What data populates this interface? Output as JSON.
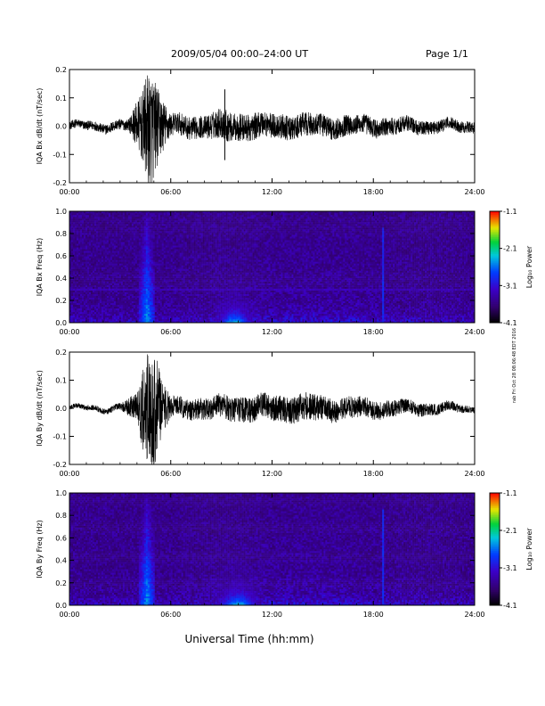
{
  "header": {
    "title": "2009/05/04  00:00–24:00 UT",
    "page": "Page 1/1"
  },
  "footer": {
    "xlabel": "Universal Time (hh:mm)"
  },
  "side_note": "rab Fri Oct 28 08:06:48 EDT 2016",
  "colorbar": {
    "label": "Log₁₀ Power",
    "ticks": [
      "-1.1",
      "-2.1",
      "-3.1",
      "-4.1"
    ],
    "range": [
      -4.1,
      -1.1
    ]
  },
  "chart_data": [
    {
      "type": "line",
      "ylabel": "IQA Bx dB/dt (nT/sec)",
      "x_ticks": [
        "00:00",
        "06:00",
        "12:00",
        "18:00",
        "24:00"
      ],
      "xlim": [
        0,
        24
      ],
      "ylim": [
        -0.2,
        0.2
      ],
      "y_ticks": [
        "0.2",
        "0.1",
        "0.0",
        "-0.1",
        "-0.2"
      ],
      "y_tick_values": [
        0.2,
        0.1,
        0.0,
        -0.1,
        -0.2
      ],
      "envelope": {
        "x_hours": [
          0,
          3.5,
          4.3,
          4.6,
          4.9,
          5.3,
          6,
          8,
          9.2,
          9.6,
          10,
          12,
          15,
          18,
          21,
          24
        ],
        "amplitude": [
          0.015,
          0.02,
          0.12,
          0.2,
          0.2,
          0.12,
          0.04,
          0.04,
          0.06,
          0.05,
          0.05,
          0.045,
          0.04,
          0.035,
          0.025,
          0.02
        ]
      },
      "spikes": [
        {
          "x_hours": 9.2,
          "y": 0.13
        },
        {
          "x_hours": 9.2,
          "y": -0.12
        }
      ]
    },
    {
      "type": "heatmap",
      "ylabel": "IQA Bx Freq (Hz)",
      "x_ticks": [
        "00:00",
        "06:00",
        "12:00",
        "18:00",
        "24:00"
      ],
      "xlim": [
        0,
        24
      ],
      "ylim": [
        0,
        1.0
      ],
      "y_ticks": [
        "1.0",
        "0.8",
        "0.6",
        "0.4",
        "0.2",
        "0.0"
      ],
      "y_tick_values": [
        1.0,
        0.8,
        0.6,
        0.4,
        0.2,
        0.0
      ],
      "color_range": [
        -4.1,
        -1.1
      ],
      "features": [
        {
          "kind": "burst",
          "x_hours": 4.6,
          "width_hours": 0.5,
          "intensity": -2.6
        },
        {
          "kind": "low_freq_band",
          "x_hours": 9.8,
          "width_hours": 1.2,
          "intensity": -2.6
        },
        {
          "kind": "line",
          "x_hours": 18.6,
          "intensity": -3.0
        },
        {
          "kind": "horizontal_line",
          "freq_hz": 0.3,
          "intensity": -3.4
        }
      ]
    },
    {
      "type": "line",
      "ylabel": "IQA By dB/dt (nT/sec)",
      "x_ticks": [
        "00:00",
        "06:00",
        "12:00",
        "18:00",
        "24:00"
      ],
      "xlim": [
        0,
        24
      ],
      "ylim": [
        -0.2,
        0.2
      ],
      "y_ticks": [
        "0.2",
        "0.1",
        "0.0",
        "-0.1",
        "-0.2"
      ],
      "y_tick_values": [
        0.2,
        0.1,
        0.0,
        -0.1,
        -0.2
      ],
      "envelope": {
        "x_hours": [
          0,
          3,
          4,
          4.4,
          4.7,
          5.0,
          5.4,
          6,
          8,
          10,
          12,
          14,
          16,
          18,
          20,
          22,
          24
        ],
        "amplitude": [
          0.008,
          0.012,
          0.05,
          0.16,
          0.22,
          0.22,
          0.12,
          0.035,
          0.04,
          0.045,
          0.045,
          0.05,
          0.04,
          0.035,
          0.025,
          0.02,
          0.012
        ]
      },
      "spikes": []
    },
    {
      "type": "heatmap",
      "ylabel": "IQA By Freq (Hz)",
      "x_ticks": [
        "00:00",
        "06:00",
        "12:00",
        "18:00",
        "24:00"
      ],
      "xlim": [
        0,
        24
      ],
      "ylim": [
        0,
        1.0
      ],
      "y_ticks": [
        "1.0",
        "0.8",
        "0.6",
        "0.4",
        "0.2",
        "0.0"
      ],
      "y_tick_values": [
        1.0,
        0.8,
        0.6,
        0.4,
        0.2,
        0.0
      ],
      "color_range": [
        -4.1,
        -1.1
      ],
      "features": [
        {
          "kind": "burst",
          "x_hours": 4.6,
          "width_hours": 0.5,
          "intensity": -2.6
        },
        {
          "kind": "low_freq_band",
          "x_hours": 10.0,
          "width_hours": 1.4,
          "intensity": -2.5
        },
        {
          "kind": "line",
          "x_hours": 18.6,
          "intensity": -3.0
        }
      ]
    }
  ]
}
